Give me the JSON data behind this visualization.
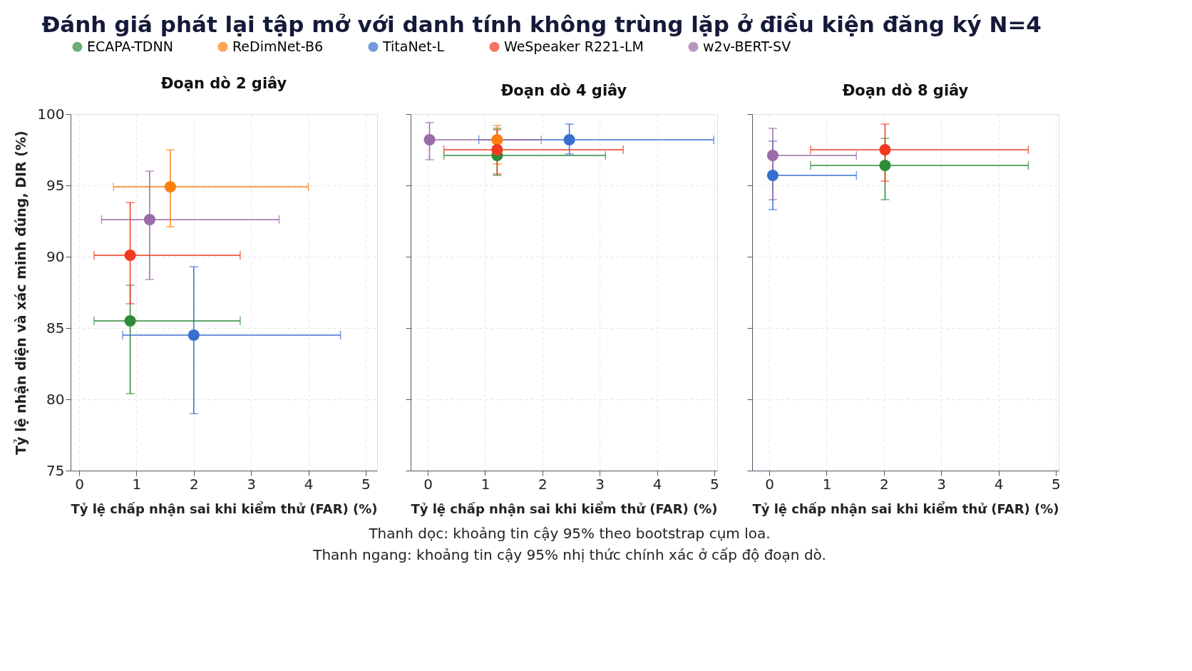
{
  "chart_data": [
    {
      "type": "scatter",
      "title": "Đánh giá phát lại tập mở với danh tính không trùng lặp ở điều kiện đăng ký N=4",
      "subtitle": "Đoạn dò 2 giây",
      "xlabel": "Tỷ lệ chấp nhận sai khi kiểm thử (FAR) (%)",
      "ylabel": "Tỷ lệ nhận diện và xác minh đúng, DIR (%)",
      "xlim": [
        -0.15,
        5.2
      ],
      "xticks": [
        0,
        1,
        2,
        3,
        4,
        5
      ],
      "ylim": [
        75,
        100
      ],
      "yticks": [
        75,
        80,
        85,
        90,
        95,
        100
      ],
      "grid": true,
      "marker": "circle",
      "legend": "top",
      "annotations": [
        "Thanh dọc: khoảng tin cậy 95% theo bootstrap cụm loa.",
        "Thanh ngang: khoảng tin cậy 95% nhị thức chính xác ở cấp độ đoạn dò."
      ],
      "series": [
        {
          "name": "ECAPA-TDNN",
          "color": "#2e8b3a",
          "x": [
            0.89
          ],
          "values": [
            85.5
          ],
          "errors": [
            [
              80.4,
              88.0
            ]
          ],
          "xerrors": [
            [
              0.26,
              2.81
            ]
          ]
        },
        {
          "name": "ReDimNet-B6",
          "color": "#ff7f0e",
          "x": [
            1.59
          ],
          "values": [
            94.9
          ],
          "errors": [
            [
              92.1,
              97.5
            ]
          ],
          "xerrors": [
            [
              0.6,
              4.0
            ]
          ]
        },
        {
          "name": "TitaNet-L",
          "color": "#3a6fd0",
          "x": [
            2.0
          ],
          "values": [
            84.5
          ],
          "errors": [
            [
              79.0,
              89.3
            ]
          ],
          "xerrors": [
            [
              0.76,
              4.56
            ]
          ]
        },
        {
          "name": "WeSpeaker R221-LM",
          "color": "#f03a1f",
          "x": [
            0.89
          ],
          "values": [
            90.1
          ],
          "errors": [
            [
              86.7,
              93.8
            ]
          ],
          "xerrors": [
            [
              0.26,
              2.81
            ]
          ]
        },
        {
          "name": "w2v-BERT-SV",
          "color": "#9b6aa8",
          "x": [
            1.23
          ],
          "values": [
            92.6
          ],
          "errors": [
            [
              88.4,
              96.0
            ]
          ],
          "xerrors": [
            [
              0.39,
              3.49
            ]
          ]
        }
      ]
    },
    {
      "type": "scatter",
      "subtitle": "Đoạn dò 4 giây",
      "xlabel": "Tỷ lệ chấp nhận sai khi kiểm thử (FAR) (%)",
      "xlim": [
        -0.3,
        5.05
      ],
      "xticks": [
        0,
        1,
        2,
        3,
        4,
        5
      ],
      "ylim": [
        75,
        100
      ],
      "yticks": [
        75,
        80,
        85,
        90,
        95,
        100
      ],
      "grid": true,
      "marker": "circle",
      "tick_labels": "x",
      "series": [
        {
          "name": "ECAPA-TDNN",
          "color": "#2e8b3a",
          "x": [
            1.21
          ],
          "values": [
            97.1
          ],
          "errors": [
            [
              95.7,
              99.0
            ]
          ],
          "xerrors": [
            [
              0.28,
              3.1
            ]
          ]
        },
        {
          "name": "ReDimNet-B6",
          "color": "#ff7f0e",
          "x": [
            1.21
          ],
          "values": [
            98.2
          ],
          "errors": [
            [
              96.5,
              99.2
            ]
          ]
        },
        {
          "name": "TitaNet-L",
          "color": "#3a6fd0",
          "x": [
            2.47
          ],
          "values": [
            98.2
          ],
          "errors": [
            [
              97.2,
              99.3
            ]
          ],
          "xerrors": [
            [
              0.89,
              4.99
            ]
          ]
        },
        {
          "name": "WeSpeaker R221-LM",
          "color": "#f03a1f",
          "x": [
            1.21
          ],
          "values": [
            97.5
          ],
          "errors": [
            [
              95.8,
              98.9
            ]
          ],
          "xerrors": [
            [
              0.28,
              3.41
            ]
          ]
        },
        {
          "name": "w2v-BERT-SV",
          "color": "#9b6aa8",
          "x": [
            0.03
          ],
          "values": [
            98.2
          ],
          "errors": [
            [
              96.8,
              99.4
            ]
          ],
          "xerrors": [
            [
              0.03,
              1.98
            ]
          ]
        }
      ]
    },
    {
      "type": "scatter",
      "subtitle": "Đoạn dò 8 giây",
      "xlabel": "Tỷ lệ chấp nhận sai khi kiểm thử (FAR) (%)",
      "xlim": [
        -0.3,
        5.05
      ],
      "xticks": [
        0,
        1,
        2,
        3,
        4,
        5
      ],
      "ylim": [
        75,
        100
      ],
      "yticks": [
        75,
        80,
        85,
        90,
        95,
        100
      ],
      "grid": true,
      "marker": "circle",
      "tick_labels": "x",
      "series": [
        {
          "name": "ECAPA-TDNN",
          "color": "#2e8b3a",
          "x": [
            2.02
          ],
          "values": [
            96.4
          ],
          "errors": [
            [
              94.0,
              98.3
            ]
          ],
          "xerrors": [
            [
              0.72,
              4.52
            ]
          ]
        },
        {
          "name": "TitaNet-L",
          "color": "#3a6fd0",
          "x": [
            0.06
          ],
          "values": [
            95.7
          ],
          "errors": [
            [
              93.3,
              98.1
            ]
          ],
          "xerrors": [
            [
              0.06,
              1.52
            ]
          ]
        },
        {
          "name": "WeSpeaker R221-LM",
          "color": "#f03a1f",
          "x": [
            2.02
          ],
          "values": [
            97.5
          ],
          "errors": [
            [
              95.3,
              99.3
            ]
          ],
          "xerrors": [
            [
              0.72,
              4.52
            ]
          ]
        },
        {
          "name": "w2v-BERT-SV",
          "color": "#9b6aa8",
          "x": [
            0.06
          ],
          "values": [
            97.1
          ],
          "errors": [
            [
              94.0,
              99.0
            ]
          ],
          "xerrors": [
            [
              0.0,
              1.52
            ]
          ]
        }
      ]
    }
  ]
}
